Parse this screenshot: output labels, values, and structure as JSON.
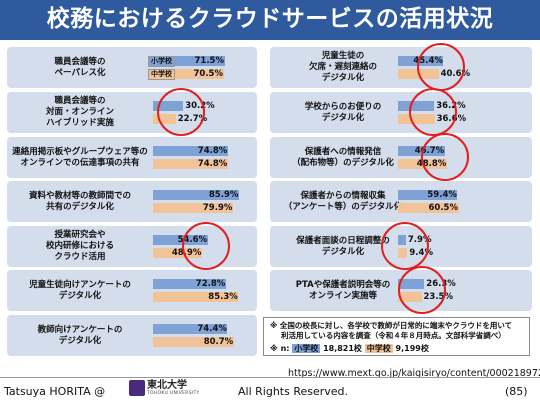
{
  "title": "校務におけるクラウドサービスの活用状況",
  "legend": {
    "es": "小学校",
    "jhs": "中学校"
  },
  "left_items": [
    {
      "label": "職員会議等の\nペーパレス化",
      "es": "71.5%",
      "jhs": "70.5%",
      "es_value": 71.5,
      "jhs_value": 70.5
    },
    {
      "label": "職員会議等の\n対面・オンライン\nハイブリッド実施",
      "es": "30.2%",
      "jhs": "22.7%",
      "es_value": 30.2,
      "jhs_value": 22.7
    },
    {
      "label": "連絡用掲示板やグループウェア等の\nオンラインでの伝達事項の共有",
      "es": "74.8%",
      "jhs": "74.8%",
      "es_value": 74.8,
      "jhs_value": 74.8
    },
    {
      "label": "資料や教材等の教師間での\n共有のデジタル化",
      "es": "85.9%",
      "jhs": "79.9%",
      "es_value": 85.9,
      "jhs_value": 79.9
    },
    {
      "label": "授業研究会や\n校内研修における\nクラウド活用",
      "es": "54.6%",
      "jhs": "48.9%",
      "es_value": 54.6,
      "jhs_value": 48.9
    },
    {
      "label": "児童生徒向けアンケートの\nデジタル化",
      "es": "72.8%",
      "jhs": "85.3%",
      "es_value": 72.8,
      "jhs_value": 85.3
    },
    {
      "label": "教師向けアンケートの\nデジタル化",
      "es": "74.4%",
      "jhs": "80.7%",
      "es_value": 74.4,
      "jhs_value": 80.7
    }
  ],
  "right_items": [
    {
      "label": "児童生徒の\n欠席・遅刻連絡の\nデジタル化",
      "es": "45.4%",
      "jhs": "40.6%",
      "es_value": 45.4,
      "jhs_value": 40.6
    },
    {
      "label": "学校からのお便りの\nデジタル化",
      "es": "36.2%",
      "jhs": "36.6%",
      "es_value": 36.2,
      "jhs_value": 36.6
    },
    {
      "label": "保護者への情報発信\n（配布物等）のデジタル化",
      "es": "46.7%",
      "jhs": "48.8%",
      "es_value": 46.7,
      "jhs_value": 48.8
    },
    {
      "label": "保護者からの情報収集\n（アンケート等）のデジタル化",
      "es": "59.4%",
      "jhs": "60.5%",
      "es_value": 59.4,
      "jhs_value": 60.5
    },
    {
      "label": "保護者面談の日程調整の\nデジタル化",
      "es": "7.9%",
      "jhs": "9.4%",
      "es_value": 7.9,
      "jhs_value": 9.4
    },
    {
      "label": "PTAや保護者説明会等の\nオンライン実施等",
      "es": "26.3%",
      "jhs": "23.5%",
      "es_value": 26.3,
      "jhs_value": 23.5
    }
  ],
  "note": {
    "line1": "※ 全国の校長に対し、各学校で教師が日常的に端末やクラウドを用いて",
    "line2": "利活用している内容を調査（令和４年８月時点。文部科学省調べ）",
    "n_prefix": "※ n:",
    "n_es_label": "小学校",
    "n_es": "18,821校",
    "n_jhs_label": "中学校",
    "n_jhs": "9,199校"
  },
  "url": "https://www.mext.go.jp/kaigisiryo/content/000218972.pdf",
  "footer": {
    "author": "Tatsuya HORITA @",
    "logo_text": "東北大学",
    "logo_sub": "TOHOKU UNIVERSITY",
    "rights": "All Rights Reserved.",
    "page": "(85)"
  },
  "colors": {
    "title_bg": "#2f5a9e",
    "panel": "#d3ddeb",
    "es_bar": "#7ea2d6",
    "jhs_bar": "#f3c398",
    "circle": "#e02020"
  }
}
